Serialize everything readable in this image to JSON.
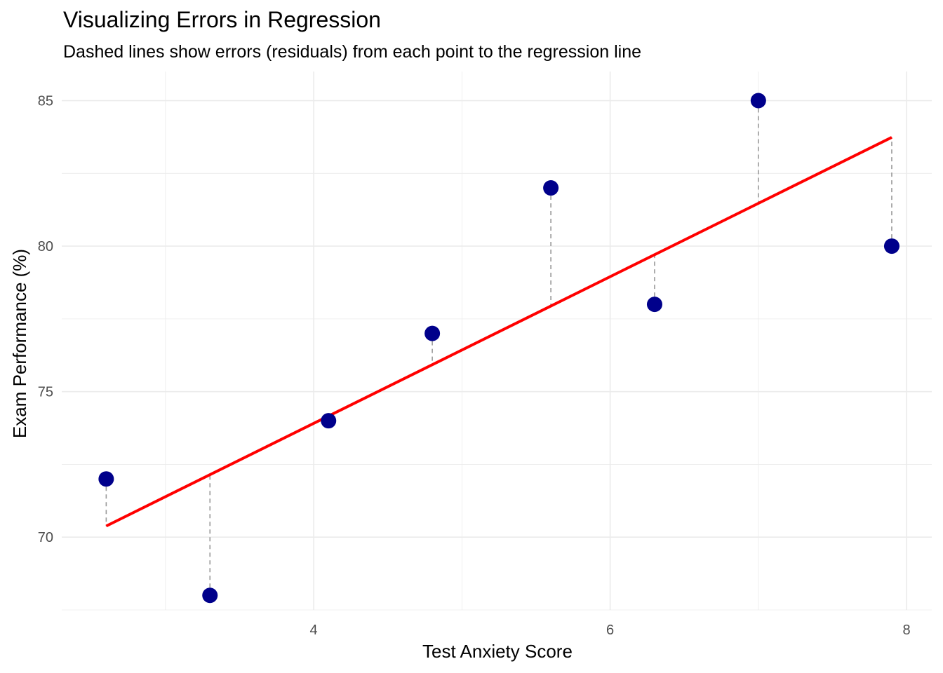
{
  "chart_data": {
    "type": "scatter",
    "title": "Visualizing Errors in Regression",
    "subtitle": "Dashed lines show errors (residuals) from each point to the regression line",
    "xlabel": "Test Anxiety Score",
    "ylabel": "Exam Performance (%)",
    "xlim": [
      2.3,
      8.17
    ],
    "ylim": [
      67.5,
      86.0
    ],
    "x_ticks": [
      4,
      6,
      8
    ],
    "y_ticks": [
      70,
      75,
      80,
      85
    ],
    "grid": true,
    "points": [
      {
        "x": 2.6,
        "y": 72
      },
      {
        "x": 3.3,
        "y": 68
      },
      {
        "x": 4.1,
        "y": 74
      },
      {
        "x": 4.8,
        "y": 77
      },
      {
        "x": 5.6,
        "y": 82
      },
      {
        "x": 6.3,
        "y": 78
      },
      {
        "x": 7.0,
        "y": 85
      },
      {
        "x": 7.9,
        "y": 80
      }
    ],
    "regression": {
      "intercept": 63.83,
      "slope": 2.52
    },
    "colors": {
      "points": "#00008B",
      "regression_line": "#FF0000",
      "residuals": "#999999",
      "grid": "#EBEBEB"
    }
  }
}
